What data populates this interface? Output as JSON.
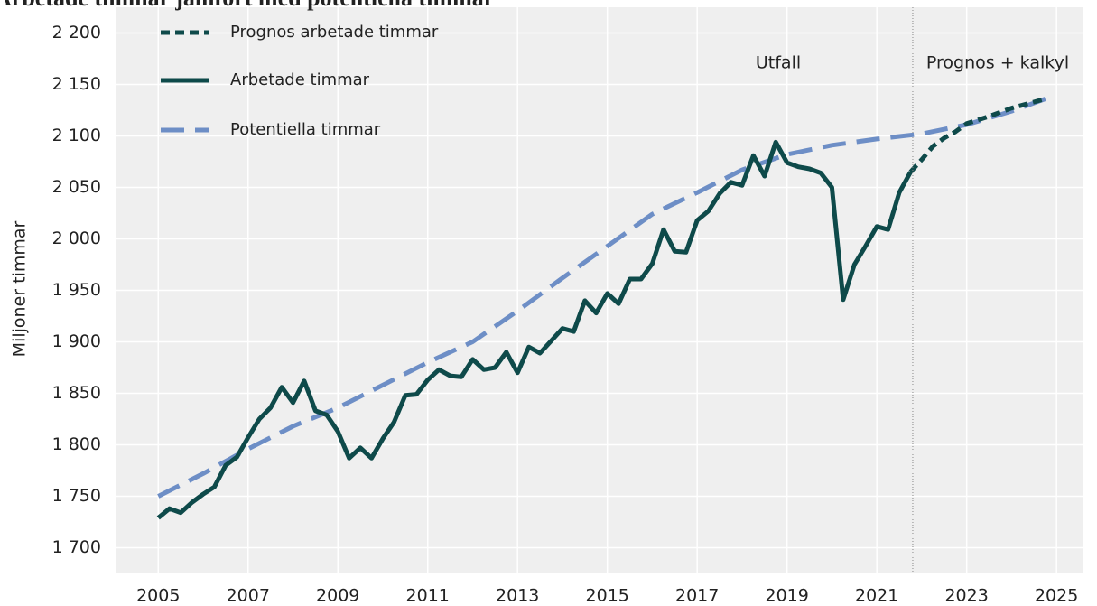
{
  "chart_data": {
    "type": "line",
    "title": "Arbetade timmar jämfört med potentiella timmar",
    "ylabel": "Miljoner timmar",
    "annotations": [
      "Utfall",
      "Prognos + kalkyl"
    ],
    "vline": 2021.8,
    "xlim": [
      2004.05,
      2025.6
    ],
    "xticks": [
      2005,
      2007,
      2009,
      2011,
      2013,
      2015,
      2017,
      2019,
      2021,
      2023,
      2025
    ],
    "ylim": [
      1675,
      2225
    ],
    "yticks": [
      {
        "value": 1700,
        "label": "1 700"
      },
      {
        "value": 1750,
        "label": "1 750"
      },
      {
        "value": 1800,
        "label": "1 800"
      },
      {
        "value": 1850,
        "label": "1 850"
      },
      {
        "value": 1900,
        "label": "1 900"
      },
      {
        "value": 1950,
        "label": "1 950"
      },
      {
        "value": 2000,
        "label": "2 000"
      },
      {
        "value": 2050,
        "label": "2 050"
      },
      {
        "value": 2100,
        "label": "2 100"
      },
      {
        "value": 2150,
        "label": "2 150"
      },
      {
        "value": 2200,
        "label": "2 200"
      }
    ],
    "grid": true,
    "legend": "upper left",
    "series": [
      {
        "name": "Prognos arbetade timmar",
        "color": "#0e4a4a",
        "linestyle": "dotted",
        "x": [
          2021.75,
          2022,
          2022.25,
          2022.5,
          2022.75,
          2023,
          2023.5,
          2024,
          2024.75
        ],
        "values": [
          2065,
          2077,
          2090,
          2098,
          2104,
          2112,
          2119,
          2127,
          2136
        ]
      },
      {
        "name": "Arbetade timmar",
        "color": "#0e4a4a",
        "linestyle": "solid",
        "x": [
          2005,
          2005.25,
          2005.5,
          2005.75,
          2006,
          2006.25,
          2006.5,
          2006.75,
          2007,
          2007.25,
          2007.5,
          2007.75,
          2008,
          2008.25,
          2008.5,
          2008.75,
          2009,
          2009.25,
          2009.5,
          2009.75,
          2010,
          2010.25,
          2010.5,
          2010.75,
          2011,
          2011.25,
          2011.5,
          2011.75,
          2012,
          2012.25,
          2012.5,
          2012.75,
          2013,
          2013.25,
          2013.5,
          2013.75,
          2014,
          2014.25,
          2014.5,
          2014.75,
          2015,
          2015.25,
          2015.5,
          2015.75,
          2016,
          2016.25,
          2016.5,
          2016.75,
          2017,
          2017.25,
          2017.5,
          2017.75,
          2018,
          2018.25,
          2018.5,
          2018.75,
          2019,
          2019.25,
          2019.5,
          2019.75,
          2020,
          2020.25,
          2020.5,
          2020.75,
          2021,
          2021.25,
          2021.5,
          2021.75
        ],
        "values": [
          1729,
          1738,
          1734,
          1744,
          1752,
          1759,
          1780,
          1788,
          1807,
          1825,
          1836,
          1856,
          1841,
          1862,
          1833,
          1829,
          1813,
          1787,
          1797,
          1787,
          1806,
          1822,
          1848,
          1849,
          1863,
          1873,
          1867,
          1866,
          1883,
          1873,
          1875,
          1890,
          1870,
          1895,
          1889,
          1901,
          1913,
          1910,
          1940,
          1928,
          1947,
          1937,
          1961,
          1961,
          1976,
          2009,
          1988,
          1987,
          2018,
          2027,
          2044,
          2055,
          2052,
          2081,
          2061,
          2094,
          2074,
          2070,
          2068,
          2064,
          2050,
          1941,
          1975,
          1993,
          2012,
          2009,
          2045,
          2065
        ]
      },
      {
        "name": "Potentiella timmar",
        "color": "#6d8ec6",
        "linestyle": "dashed",
        "x": [
          2005,
          2006,
          2007,
          2008,
          2009,
          2010,
          2011,
          2012,
          2013,
          2014,
          2015,
          2016,
          2017,
          2018,
          2019,
          2020,
          2021,
          2022,
          2023,
          2024,
          2024.75
        ],
        "values": [
          1750,
          1772,
          1796,
          1818,
          1836,
          1858,
          1880,
          1900,
          1930,
          1962,
          1993,
          2024,
          2045,
          2067,
          2082,
          2091,
          2097,
          2102,
          2111,
          2124,
          2136
        ]
      }
    ]
  }
}
